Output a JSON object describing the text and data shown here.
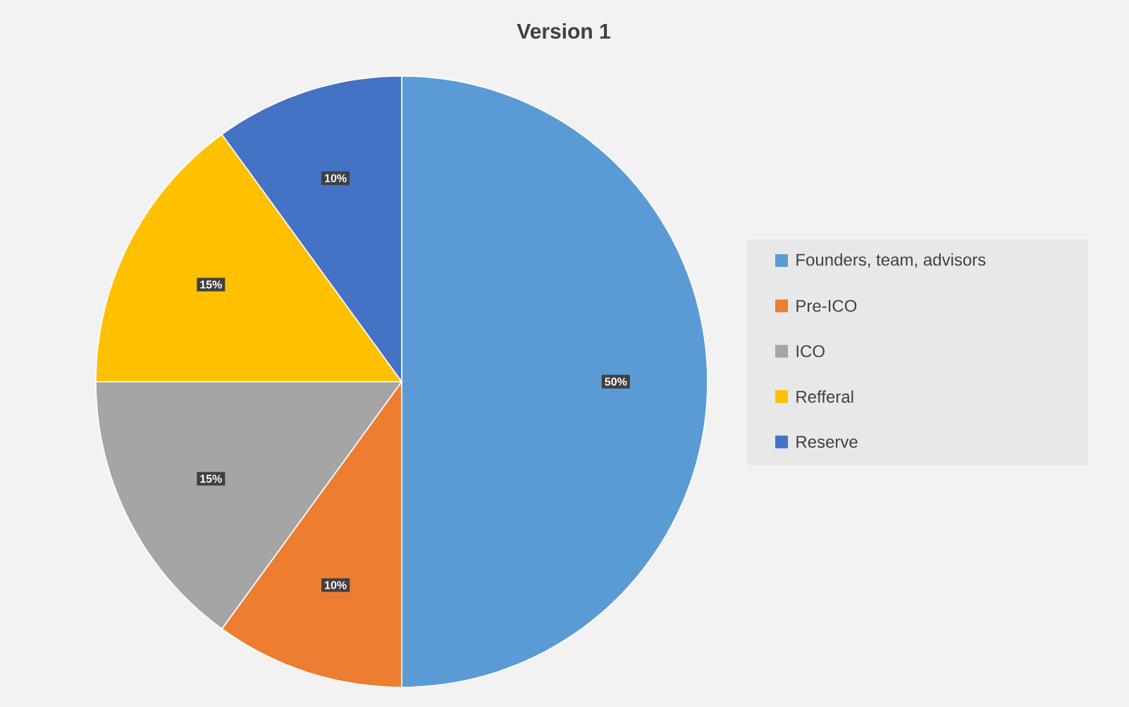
{
  "chart_data": {
    "type": "pie",
    "title": "Version 1",
    "categories": [
      "Founders, team, advisors",
      "Pre-ICO",
      "ICO",
      "Refferal",
      "Reserve"
    ],
    "values": [
      50,
      10,
      15,
      15,
      10
    ],
    "value_labels": [
      "50%",
      "10%",
      "15%",
      "15%",
      "10%"
    ],
    "colors": [
      "#5b9bd5",
      "#ed7d31",
      "#a5a5a5",
      "#ffc000",
      "#4472c4"
    ],
    "legend": "right"
  }
}
